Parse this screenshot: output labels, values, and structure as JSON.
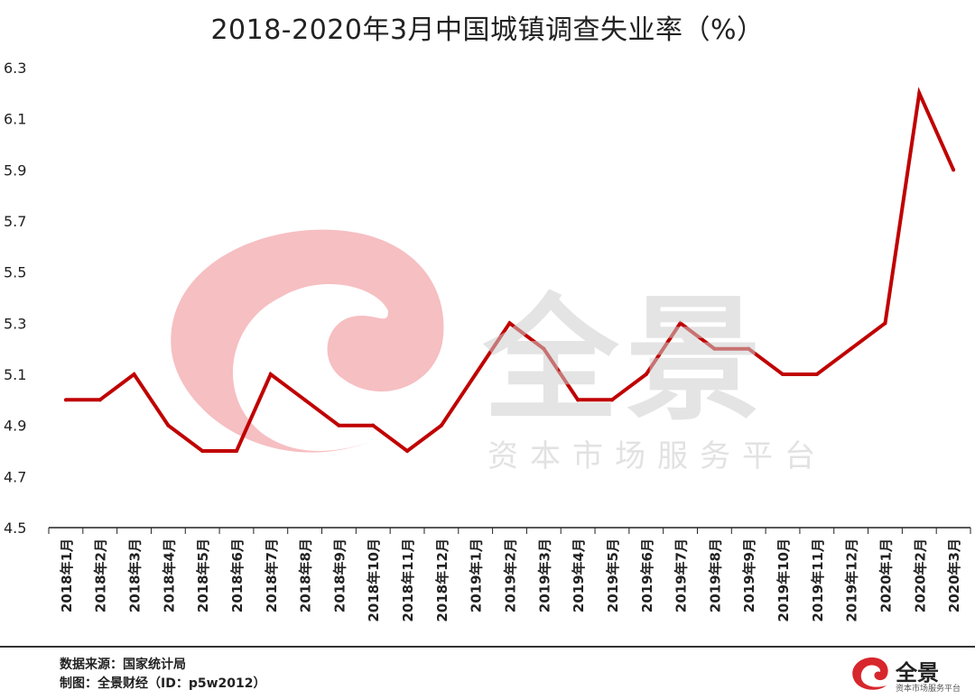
{
  "chart_data": {
    "type": "line",
    "title": "2018-2020年3月中国城镇调查失业率（%）",
    "xlabel": "",
    "ylabel": "",
    "ylim": [
      4.5,
      6.3
    ],
    "yticks": [
      4.5,
      4.7,
      4.9,
      5.1,
      5.3,
      5.5,
      5.7,
      5.9,
      6.1,
      6.3
    ],
    "grid": false,
    "legend": "none",
    "categories": [
      "2018年1月",
      "2018年2月",
      "2018年3月",
      "2018年4月",
      "2018年5月",
      "2018年6月",
      "2018年7月",
      "2018年8月",
      "2018年9月",
      "2018年10月",
      "2018年11月",
      "2018年12月",
      "2019年1月",
      "2019年2月",
      "2019年3月",
      "2019年4月",
      "2019年5月",
      "2019年6月",
      "2019年7月",
      "2019年8月",
      "2019年9月",
      "2019年10月",
      "2019年11月",
      "2019年12月",
      "2020年1月",
      "2020年2月",
      "2020年3月"
    ],
    "series": [
      {
        "color": "#c00000",
        "values": [
          5.0,
          5.0,
          5.1,
          4.9,
          4.8,
          4.8,
          5.1,
          5.0,
          4.9,
          4.9,
          4.8,
          4.9,
          5.1,
          5.3,
          5.2,
          5.0,
          5.0,
          5.1,
          5.3,
          5.2,
          5.2,
          5.1,
          5.1,
          5.2,
          5.3,
          6.2,
          5.9
        ]
      }
    ]
  },
  "footer": {
    "source": "数据来源：国家统计局",
    "credit": "制图：全景财经（ID：p5w2012）"
  },
  "watermark": {
    "name": "全景",
    "subtitle": "资本市场服务平台"
  },
  "logo": {
    "name": "全景",
    "subtitle": "资本市场服务平台",
    "color": "#d7262c"
  }
}
